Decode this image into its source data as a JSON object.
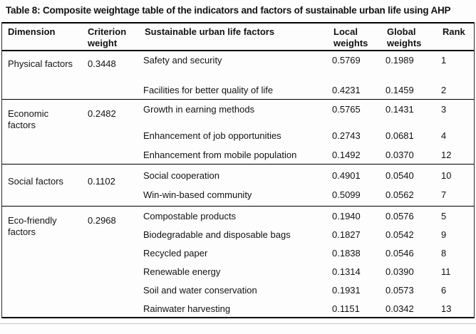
{
  "title": "Table 8: Composite weightage table of the indicators and factors of sustainable urban life using AHP",
  "columns": {
    "dimension": "Dimension",
    "criterion_weight": "Criterion weight",
    "factors": "Sustainable urban life factors",
    "local_weights": "Local weights",
    "global_weights": "Global weights",
    "rank": "Rank"
  },
  "groups": [
    {
      "dimension": "Physical factors",
      "criterion_weight": "0.3448",
      "rows": [
        {
          "factor": "Safety and security",
          "local_weight": "0.5769",
          "global_weight": "0.1989",
          "rank": "1"
        },
        {
          "factor": "Facilities for better quality of life",
          "local_weight": "0.4231",
          "global_weight": "0.1459",
          "rank": "2"
        }
      ]
    },
    {
      "dimension": "Economic factors",
      "criterion_weight": "0.2482",
      "rows": [
        {
          "factor": "Growth in earning methods",
          "local_weight": "0.5765",
          "global_weight": "0.1431",
          "rank": "3"
        },
        {
          "factor": "Enhancement of job opportunities",
          "local_weight": "0.2743",
          "global_weight": "0.0681",
          "rank": "4"
        },
        {
          "factor": "Enhancement from mobile population",
          "local_weight": "0.1492",
          "global_weight": "0.0370",
          "rank": "12"
        }
      ]
    },
    {
      "dimension": "Social factors",
      "criterion_weight": "0.1102",
      "rows": [
        {
          "factor": "Social cooperation",
          "local_weight": "0.4901",
          "global_weight": "0.0540",
          "rank": "10"
        },
        {
          "factor": "Win-win-based community",
          "local_weight": "0.5099",
          "global_weight": "0.0562",
          "rank": "7"
        }
      ]
    },
    {
      "dimension": "Eco-friendly factors",
      "criterion_weight": "0.2968",
      "rows": [
        {
          "factor": "Compostable products",
          "local_weight": "0.1940",
          "global_weight": "0.0576",
          "rank": "5"
        },
        {
          "factor": "Biodegradable and disposable bags",
          "local_weight": "0.1827",
          "global_weight": "0.0542",
          "rank": "9"
        },
        {
          "factor": "Recycled paper",
          "local_weight": "0.1838",
          "global_weight": "0.0546",
          "rank": "8"
        },
        {
          "factor": "Renewable energy",
          "local_weight": "0.1314",
          "global_weight": "0.0390",
          "rank": "11"
        },
        {
          "factor": "Soil and water conservation",
          "local_weight": "0.1931",
          "global_weight": "0.0573",
          "rank": "6"
        },
        {
          "factor": "Rainwater harvesting",
          "local_weight": "0.1151",
          "global_weight": "0.0342",
          "rank": "13"
        }
      ]
    }
  ],
  "colors": {
    "text": "#121212",
    "rule": "#000000",
    "faint_rule": "#c9c9c9",
    "background": "#fdfdfd"
  }
}
